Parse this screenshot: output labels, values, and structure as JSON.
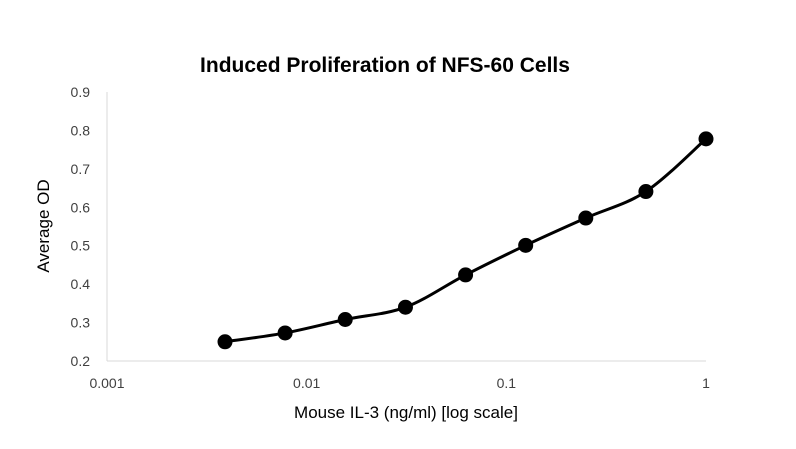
{
  "chart_data": {
    "type": "line",
    "title": "Induced Proliferation of NFS-60 Cells",
    "xlabel": "Mouse IL-3 (ng/ml) [log scale]",
    "ylabel": "Average OD",
    "x_scale": "log",
    "xlim": [
      0.001,
      1
    ],
    "ylim": [
      0.2,
      0.9
    ],
    "x_ticks": [
      0.001,
      0.01,
      0.1,
      1
    ],
    "x_tick_labels": [
      "0.001",
      "0.01",
      "0.1",
      "1"
    ],
    "y_ticks": [
      0.2,
      0.3,
      0.4,
      0.5,
      0.6,
      0.7,
      0.8,
      0.9
    ],
    "y_tick_labels": [
      "0.2",
      "0.3",
      "0.4",
      "0.5",
      "0.6",
      "0.7",
      "0.8",
      "0.9"
    ],
    "grid": false,
    "legend": "none",
    "smooth": true,
    "colors": {
      "line": "#000000",
      "marker": "#000000",
      "axis": "#d9d9d9",
      "tick_text": "#404040"
    },
    "series": [
      {
        "x": [
          0.0039,
          0.0078,
          0.0156,
          0.03125,
          0.0625,
          0.125,
          0.25,
          0.5,
          1
        ],
        "y": [
          0.25,
          0.273,
          0.308,
          0.34,
          0.424,
          0.501,
          0.572,
          0.641,
          0.778
        ]
      }
    ]
  }
}
